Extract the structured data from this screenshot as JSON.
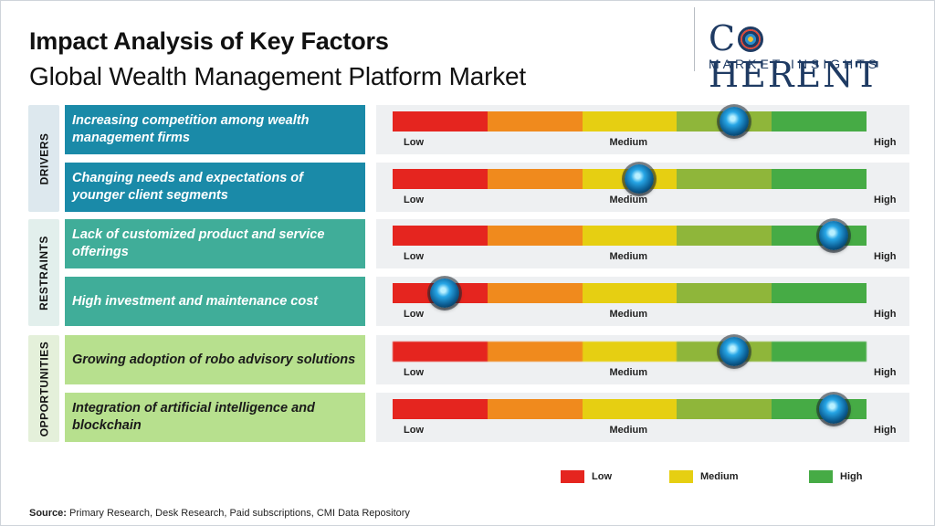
{
  "header": {
    "title": "Impact Analysis of Key Factors",
    "subtitle": "Global Wealth Management Platform Market"
  },
  "logo": {
    "main_left": "C",
    "main_right": "HERENT",
    "sub": "MARKET INSIGHTS",
    "colors": {
      "navy": "#1f3b63",
      "blue": "#2a8fd0",
      "yellow": "#f2c12e",
      "red": "#e04a3a"
    }
  },
  "groups": [
    {
      "label": "DRIVERS",
      "color": "#dde8ee"
    },
    {
      "label": "RESTRAINTS",
      "color": "#e2efec"
    },
    {
      "label": "OPPORTUNITIES",
      "color": "#e4f0da"
    }
  ],
  "scale_labels": {
    "low": "Low",
    "medium": "Medium",
    "high": "High"
  },
  "scale_colors": [
    "#e5251f",
    "#f08a1d",
    "#e6cf12",
    "#8fb63a",
    "#46ab45"
  ],
  "chart_data": {
    "type": "table",
    "title": "Impact Analysis of Key Factors",
    "subtitle": "Global Wealth Management Platform Market",
    "scale": [
      "Low",
      "Medium",
      "High"
    ],
    "value_range": [
      0,
      1
    ],
    "factors": [
      {
        "group": "DRIVERS",
        "text": "Increasing competition among wealth management firms",
        "impact": 0.72,
        "color": "#1a8aa8"
      },
      {
        "group": "DRIVERS",
        "text": "Changing needs and expectations of younger client segments",
        "impact": 0.52,
        "color": "#1a8aa8"
      },
      {
        "group": "RESTRAINTS",
        "text": "Lack of customized product and service offerings",
        "impact": 0.93,
        "color": "#40ad99"
      },
      {
        "group": "RESTRAINTS",
        "text": "High investment and maintenance cost",
        "impact": 0.11,
        "color": "#40ad99"
      },
      {
        "group": "OPPORTUNITIES",
        "text": "Growing adoption of robo advisory solutions",
        "impact": 0.72,
        "color": "#b7e08e"
      },
      {
        "group": "OPPORTUNITIES",
        "text": "Integration of artificial intelligence and blockchain",
        "impact": 0.93,
        "color": "#b7e08e"
      }
    ]
  },
  "legend": [
    {
      "label": "Low",
      "color": "#e5251f"
    },
    {
      "label": "Medium",
      "color": "#e6cf12"
    },
    {
      "label": "High",
      "color": "#46ab45"
    }
  ],
  "source": {
    "label": "Source:",
    "text": " Primary Research, Desk Research, Paid subscriptions, CMI Data Repository"
  }
}
